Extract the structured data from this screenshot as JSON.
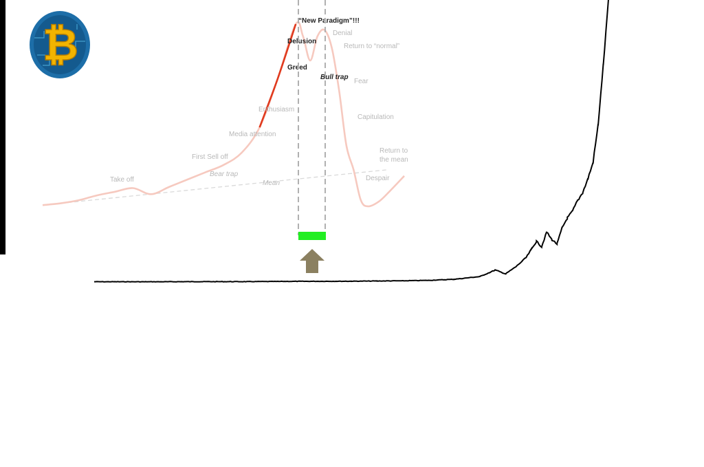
{
  "colors": {
    "background": "#ffffff",
    "cycle_curve_faded": "#f6c9bf",
    "cycle_curve_highlight": "#e03a1e",
    "price_line": "#000000",
    "highlight_bar": "#22ee22",
    "arrow": "#8b8060",
    "dashed_guides": "#b0b0b0",
    "logo_coin": "#f2b400",
    "logo_disc": "#1d6ea8"
  },
  "logo": {
    "icon": "bitcoin-logo-icon",
    "glyph": "₿"
  },
  "chart_data": [
    {
      "type": "line",
      "role": "market-cycle-psychology-overlay",
      "title": "",
      "xlabel": "",
      "ylabel": "",
      "grid": false,
      "x": [
        0,
        5,
        10,
        15,
        20,
        25,
        30,
        35,
        40,
        45,
        50,
        55,
        60,
        65,
        70,
        72,
        74,
        76,
        78,
        80,
        82,
        84,
        86,
        88,
        90,
        93,
        96,
        100
      ],
      "values": [
        2,
        5,
        10,
        18,
        24,
        30,
        20,
        32,
        44,
        56,
        68,
        88,
        130,
        210,
        300,
        280,
        240,
        280,
        290,
        260,
        190,
        100,
        60,
        10,
        0,
        8,
        25,
        50
      ],
      "highlight_range": [
        60,
        70
      ],
      "mean_line": {
        "label": "Mean",
        "start": 5,
        "end": 50
      },
      "stages": [
        {
          "label": "Take off",
          "x": 16,
          "style": "normal"
        },
        {
          "label": "First Sell off",
          "x": 25,
          "style": "normal"
        },
        {
          "label": "Bear trap",
          "x": 28,
          "style": "italic"
        },
        {
          "label": "Mean",
          "x": 35,
          "style": "italic"
        },
        {
          "label": "Media attention",
          "x": 40,
          "style": "normal"
        },
        {
          "label": "Enthusiasm",
          "x": 52,
          "style": "normal"
        },
        {
          "label": "Greed",
          "x": 58,
          "style": "dark"
        },
        {
          "label": "Delusion",
          "x": 62,
          "style": "dark"
        },
        {
          "label": "“New Paradigm”!!!",
          "x": 70,
          "style": "dark"
        },
        {
          "label": "Denial",
          "x": 74,
          "style": "normal"
        },
        {
          "label": "Bull trap",
          "x": 73,
          "style": "italic-dark"
        },
        {
          "label": "Return to “normal”",
          "x": 80,
          "style": "normal"
        },
        {
          "label": "Fear",
          "x": 80,
          "style": "normal"
        },
        {
          "label": "Capitulation",
          "x": 84,
          "style": "normal"
        },
        {
          "label": "Despair",
          "x": 88,
          "style": "normal"
        },
        {
          "label": "Return to the mean",
          "x": 94,
          "style": "normal"
        }
      ]
    },
    {
      "type": "line",
      "role": "bitcoin-price-history",
      "title": "",
      "xlabel": "",
      "ylabel": "",
      "grid": false,
      "x": [
        0,
        10,
        20,
        30,
        40,
        50,
        55,
        60,
        65,
        70,
        75,
        78,
        80,
        82,
        84,
        85,
        86,
        87,
        88,
        89,
        90,
        91,
        92,
        93,
        94,
        95,
        96,
        97,
        98,
        99,
        100
      ],
      "values": [
        0.5,
        0.4,
        0.6,
        0.7,
        1.2,
        1.4,
        1.8,
        2.2,
        3.0,
        5.0,
        10.0,
        22.0,
        15.0,
        28.0,
        45.0,
        60.0,
        75.0,
        65.0,
        92.0,
        78.0,
        70.0,
        100.0,
        118.0,
        130.0,
        150.0,
        165.0,
        190.0,
        220.0,
        290.0,
        400.0,
        520.0
      ]
    }
  ]
}
